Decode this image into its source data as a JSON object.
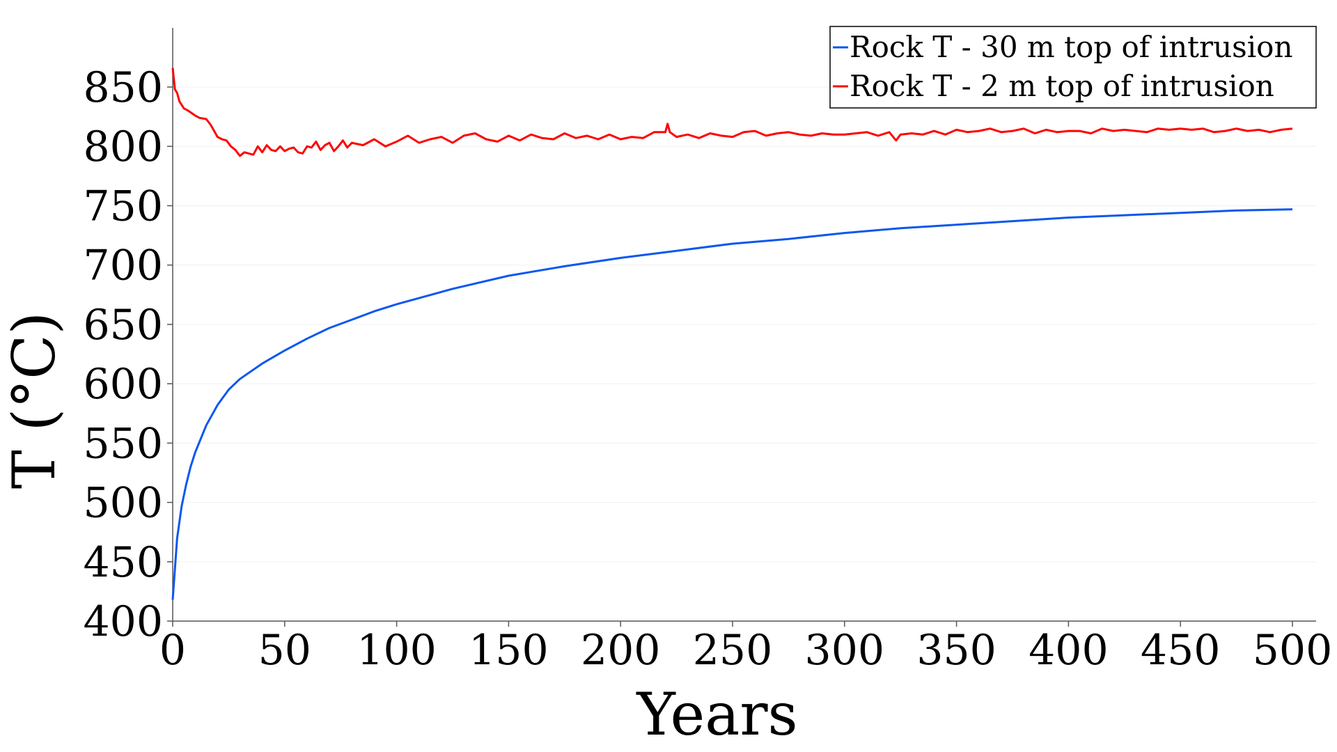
{
  "chart_data": {
    "type": "line",
    "xlabel": "Years",
    "ylabel": "T (°C)",
    "xlim": [
      0,
      500
    ],
    "ylim": [
      400,
      900
    ],
    "xticks": [
      0,
      50,
      100,
      150,
      200,
      250,
      300,
      350,
      400,
      450,
      500
    ],
    "yticks": [
      400,
      450,
      500,
      550,
      600,
      650,
      700,
      750,
      800,
      850
    ],
    "grid": true,
    "legend_position": "top-right",
    "series": [
      {
        "name": "Rock T - 30 m top of intrusion",
        "color": "#0b57f0",
        "x": [
          0,
          2,
          4,
          6,
          8,
          10,
          15,
          20,
          25,
          30,
          40,
          50,
          60,
          70,
          80,
          90,
          100,
          125,
          150,
          175,
          200,
          225,
          250,
          275,
          300,
          325,
          350,
          375,
          400,
          425,
          450,
          475,
          500
        ],
        "y": [
          418,
          470,
          497,
          515,
          530,
          542,
          565,
          582,
          595,
          604,
          617,
          628,
          638,
          647,
          654,
          661,
          667,
          680,
          691,
          699,
          706,
          712,
          718,
          722,
          727,
          731,
          734,
          737,
          740,
          742,
          744,
          746,
          747
        ]
      },
      {
        "name": "Rock T - 2 m top of intrusion",
        "color": "#ff0000",
        "x": [
          0,
          1,
          2,
          3,
          5,
          7,
          10,
          12,
          15,
          17,
          20,
          22,
          24,
          26,
          28,
          30,
          32,
          34,
          36,
          38,
          40,
          42,
          44,
          46,
          48,
          50,
          52,
          54,
          56,
          58,
          60,
          62,
          64,
          66,
          68,
          70,
          72,
          74,
          76,
          78,
          80,
          85,
          90,
          95,
          100,
          105,
          110,
          115,
          120,
          125,
          130,
          135,
          140,
          145,
          150,
          155,
          160,
          165,
          170,
          175,
          180,
          185,
          190,
          195,
          200,
          205,
          210,
          215,
          220,
          221,
          222,
          225,
          230,
          235,
          240,
          245,
          250,
          255,
          260,
          265,
          270,
          275,
          280,
          285,
          290,
          295,
          300,
          305,
          310,
          315,
          320,
          323,
          325,
          330,
          335,
          340,
          345,
          350,
          355,
          360,
          365,
          370,
          375,
          380,
          385,
          390,
          395,
          400,
          405,
          410,
          415,
          420,
          425,
          430,
          435,
          440,
          445,
          450,
          455,
          460,
          465,
          470,
          475,
          480,
          485,
          490,
          495,
          500
        ],
        "y": [
          866,
          848,
          845,
          838,
          832,
          830,
          826,
          824,
          823,
          818,
          808,
          806,
          805,
          800,
          797,
          792,
          795,
          794,
          793,
          800,
          795,
          801,
          797,
          796,
          800,
          796,
          798,
          799,
          795,
          794,
          800,
          799,
          804,
          797,
          801,
          803,
          796,
          800,
          805,
          799,
          803,
          801,
          806,
          800,
          804,
          809,
          803,
          806,
          808,
          803,
          809,
          811,
          806,
          804,
          809,
          805,
          810,
          807,
          806,
          811,
          807,
          809,
          806,
          810,
          806,
          808,
          807,
          812,
          812,
          819,
          812,
          808,
          810,
          807,
          811,
          809,
          808,
          812,
          813,
          809,
          811,
          812,
          810,
          809,
          811,
          810,
          810,
          811,
          812,
          809,
          812,
          805,
          810,
          811,
          810,
          813,
          810,
          814,
          812,
          813,
          815,
          812,
          813,
          815,
          811,
          814,
          812,
          813,
          813,
          811,
          815,
          813,
          814,
          813,
          812,
          815,
          814,
          815,
          814,
          815,
          812,
          813,
          815,
          813,
          814,
          812,
          814,
          815
        ]
      }
    ]
  }
}
